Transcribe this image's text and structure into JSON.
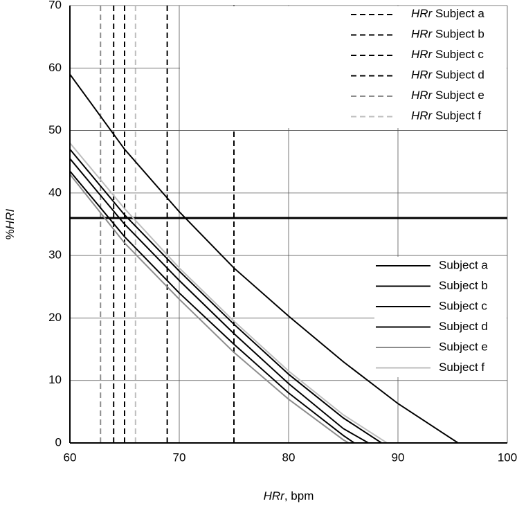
{
  "chart_data": {
    "type": "line",
    "xlabel": {
      "italic": "HRr",
      "rest": ", bpm"
    },
    "ylabel": {
      "prefix": "%",
      "italic": "HRI"
    },
    "xlim": [
      60,
      100
    ],
    "xticks": [
      60,
      70,
      80,
      90,
      100
    ],
    "ylim": [
      0,
      70
    ],
    "yticks": [
      0,
      10,
      20,
      30,
      40,
      50,
      60,
      70
    ],
    "grid": true,
    "hline": 36,
    "series": [
      {
        "name": "Subject a",
        "color": "#000000",
        "x": [
          60,
          65,
          70,
          75,
          80,
          85,
          90,
          95.5
        ],
        "values": [
          59,
          47,
          37,
          28,
          20.3,
          13,
          6.3,
          0
        ]
      },
      {
        "name": "Subject b",
        "color": "#000000",
        "x": [
          60,
          65,
          70,
          75,
          80,
          85,
          87.3
        ],
        "values": [
          45.5,
          35,
          26,
          17.5,
          9.5,
          2.3,
          0
        ]
      },
      {
        "name": "Subject c",
        "color": "#000000",
        "x": [
          60,
          65,
          70,
          75,
          80,
          85,
          86
        ],
        "values": [
          43.5,
          33,
          24,
          15.8,
          8,
          1.2,
          0
        ]
      },
      {
        "name": "Subject d",
        "color": "#000000",
        "x": [
          60,
          65,
          70,
          75,
          80,
          85,
          88.5
        ],
        "values": [
          47,
          36.5,
          27.5,
          19,
          11,
          4,
          0
        ]
      },
      {
        "name": "Subject e",
        "color": "#8c8c8c",
        "x": [
          60,
          65,
          70,
          75,
          80,
          85,
          85.5
        ],
        "values": [
          43,
          32,
          23,
          14.5,
          7,
          0.5,
          0
        ]
      },
      {
        "name": "Subject f",
        "color": "#bdbdbd",
        "x": [
          60,
          65,
          70,
          75,
          80,
          85,
          89
        ],
        "values": [
          48,
          37.5,
          28,
          19.5,
          11.5,
          4.5,
          0
        ]
      }
    ],
    "reference_lines": {
      "label_prefix": "HRr",
      "series": [
        {
          "name": "Subject a",
          "color": "#000000",
          "x": 75
        },
        {
          "name": "Subject b",
          "color": "#000000",
          "x": 68.9
        },
        {
          "name": "Subject c",
          "color": "#000000",
          "x": 65
        },
        {
          "name": "Subject d",
          "color": "#000000",
          "x": 64
        },
        {
          "name": "Subject e",
          "color": "#8c8c8c",
          "x": 62.8
        },
        {
          "name": "Subject f",
          "color": "#bdbdbd",
          "x": 66
        }
      ]
    }
  }
}
